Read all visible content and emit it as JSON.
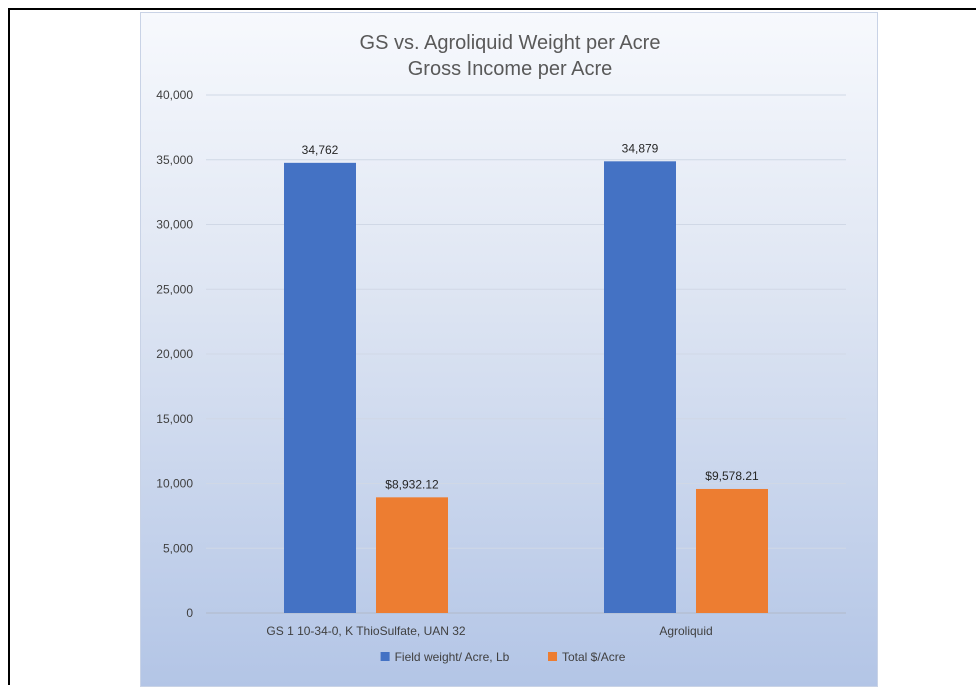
{
  "chart_data": {
    "type": "bar",
    "title": "GS vs. Agroliquid Weight per Acre",
    "subtitle": "Gross Income per Acre",
    "categories": [
      "GS 1 10-34-0, K ThioSulfate, UAN 32",
      "Agroliquid"
    ],
    "series": [
      {
        "name": "Field weight/ Acre, Lb",
        "values": [
          34762,
          34879
        ],
        "labels": [
          "34,762",
          "34,879"
        ],
        "color": "#4472C4"
      },
      {
        "name": "Total $/Acre",
        "values": [
          8932.12,
          9578.21
        ],
        "labels": [
          "$8,932.12",
          "$9,578.21"
        ],
        "color": "#ED7D31"
      }
    ],
    "ylim": [
      0,
      40000
    ],
    "yticks": [
      0,
      5000,
      10000,
      15000,
      20000,
      25000,
      30000,
      35000,
      40000
    ],
    "ytick_labels": [
      "0",
      "5,000",
      "10,000",
      "15,000",
      "20,000",
      "25,000",
      "30,000",
      "35,000",
      "40,000"
    ],
    "grid": true,
    "legend_position": "bottom"
  }
}
